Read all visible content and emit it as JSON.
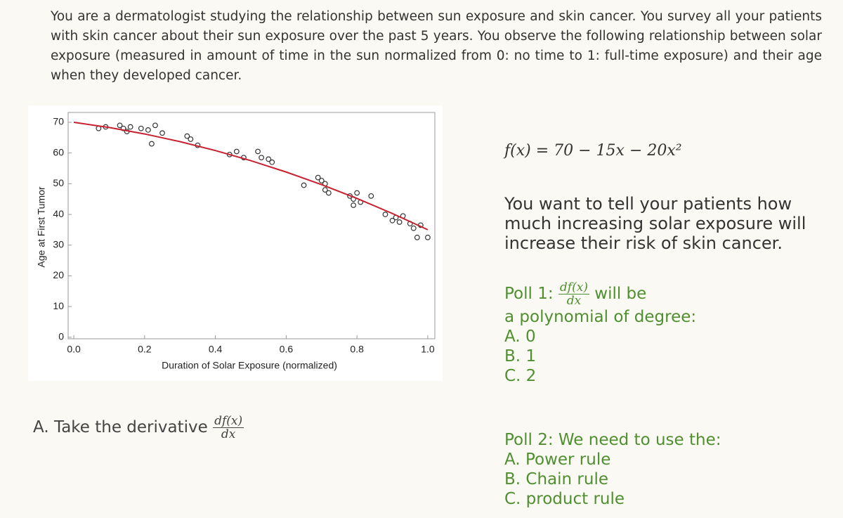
{
  "intro": "You are a dermatologist studying the relationship between sun exposure and skin cancer. You survey all your patients with skin cancer about their sun exposure over the past 5 years. You observe the following relationship between solar exposure (measured in amount of time in the sun normalized from 0: no time to 1: full-time exposure) and their age when they developed cancer.",
  "chart_data": {
    "type": "scatter",
    "x_label": "Duration of Solar Exposure (normalized)",
    "y_label": "Age at First Tumor",
    "xlim": [
      -0.016,
      1.02
    ],
    "ylim": [
      -0.5,
      73.2
    ],
    "xticks": [
      {
        "value": 0,
        "label": "0.0"
      },
      0.2,
      0.4,
      0.6,
      0.8,
      {
        "value": 1,
        "label": "1.0"
      }
    ],
    "yticks": [
      0,
      10,
      20,
      30,
      40,
      50,
      60,
      70
    ],
    "series": [
      {
        "type": "scatter",
        "color": "#333333",
        "x": [
          0.07,
          0.09,
          0.13,
          0.14,
          0.15,
          0.16,
          0.19,
          0.21,
          0.22,
          0.23,
          0.25,
          0.32,
          0.33,
          0.35,
          0.44,
          0.46,
          0.48,
          0.52,
          0.53,
          0.55,
          0.56,
          0.65,
          0.69,
          0.7,
          0.71,
          0.71,
          0.72,
          0.78,
          0.79,
          0.79,
          0.8,
          0.81,
          0.84,
          0.88,
          0.9,
          0.91,
          0.92,
          0.93,
          0.95,
          0.96,
          0.98,
          0.97,
          1.0
        ],
        "values": [
          68,
          68.5,
          69,
          68,
          67,
          68.5,
          68,
          67.5,
          63,
          69,
          66.5,
          65.5,
          64.5,
          62.5,
          59.5,
          60.5,
          58.5,
          60.5,
          58.5,
          58,
          57,
          49.5,
          52,
          51,
          50,
          48,
          47,
          46,
          45,
          43,
          47,
          44,
          46,
          40,
          38,
          39,
          37.5,
          39.5,
          37,
          35.5,
          36.5,
          32.5,
          32.5
        ]
      },
      {
        "type": "line",
        "color": "#c8202e",
        "x": [
          0,
          0.1,
          0.2,
          0.3,
          0.4,
          0.5,
          0.6,
          0.7,
          0.8,
          0.9,
          1.0
        ],
        "values": [
          70,
          68.3,
          66.2,
          63.7,
          60.8,
          57.5,
          53.8,
          49.7,
          45.2,
          40.3,
          35
        ]
      }
    ]
  },
  "formula": "f(x) = 70 − 15x − 20x²",
  "question": "You want to tell your patients how much increasing solar exposure will increase their risk of skin cancer.",
  "poll1": {
    "label": "Poll 1:",
    "numerator": "df(x)",
    "denominator": "dx",
    "text": "will be",
    "text2": "a polynomial of degree:",
    "options": [
      "A. 0",
      "B. 1",
      "C. 2"
    ]
  },
  "task": {
    "text": "A. Take the derivative",
    "numerator": "df(x)",
    "denominator": "dx"
  },
  "poll2": {
    "label": "Poll 2: We need to use the:",
    "options": [
      "A. Power rule",
      "B. Chain rule",
      "C. product rule"
    ]
  }
}
